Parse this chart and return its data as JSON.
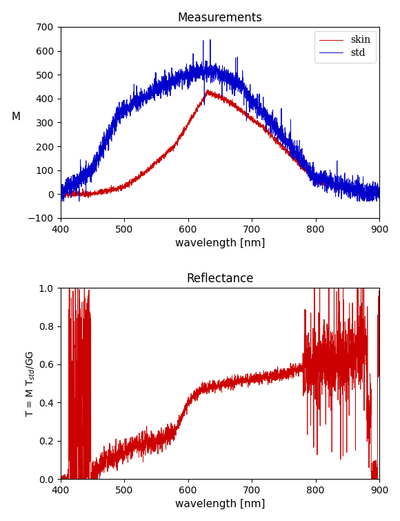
{
  "title1": "Measurements",
  "title2": "Reflectance",
  "xlabel": "wavelength [nm]",
  "ylabel1": "M",
  "ylabel2": "T = M T$_{std}$/GG",
  "xlim": [
    400,
    900
  ],
  "ylim1": [
    -100,
    700
  ],
  "ylim2": [
    0,
    1
  ],
  "yticks1": [
    -100,
    0,
    100,
    200,
    300,
    400,
    500,
    600,
    700
  ],
  "yticks2": [
    0,
    0.2,
    0.4,
    0.6,
    0.8,
    1.0
  ],
  "xticks": [
    400,
    500,
    600,
    700,
    800,
    900
  ],
  "skin_color": "#cc0000",
  "std_color": "#0000cc",
  "reflectance_color": "#cc0000",
  "legend_labels": [
    "skin",
    "std"
  ],
  "background_color": "#ffffff",
  "seed": 42
}
